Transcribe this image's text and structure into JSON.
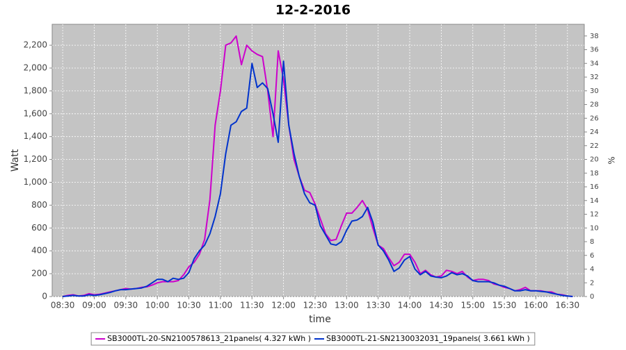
{
  "chart_data": {
    "type": "line",
    "title": "12-2-2016",
    "x_label": "time",
    "y_label": "Watt",
    "y2_label": "%",
    "x": [
      "08:30",
      "08:35",
      "08:40",
      "08:45",
      "08:50",
      "08:55",
      "09:00",
      "09:05",
      "09:10",
      "09:15",
      "09:20",
      "09:25",
      "09:30",
      "09:35",
      "09:40",
      "09:45",
      "09:50",
      "09:55",
      "10:00",
      "10:05",
      "10:10",
      "10:15",
      "10:20",
      "10:25",
      "10:30",
      "10:35",
      "10:40",
      "10:45",
      "10:50",
      "10:55",
      "11:00",
      "11:05",
      "11:10",
      "11:15",
      "11:20",
      "11:25",
      "11:30",
      "11:35",
      "11:40",
      "11:45",
      "11:50",
      "11:55",
      "12:00",
      "12:05",
      "12:10",
      "12:15",
      "12:20",
      "12:25",
      "12:30",
      "12:35",
      "12:40",
      "12:45",
      "12:50",
      "12:55",
      "13:00",
      "13:05",
      "13:10",
      "13:15",
      "13:20",
      "13:25",
      "13:30",
      "13:35",
      "13:40",
      "13:45",
      "13:50",
      "13:55",
      "14:00",
      "14:05",
      "14:10",
      "14:15",
      "14:20",
      "14:25",
      "14:30",
      "14:35",
      "14:40",
      "14:45",
      "14:50",
      "14:55",
      "15:00",
      "15:05",
      "15:10",
      "15:15",
      "15:20",
      "15:25",
      "15:30",
      "15:35",
      "15:40",
      "15:45",
      "15:50",
      "15:55",
      "16:00",
      "16:05",
      "16:10",
      "16:15",
      "16:20",
      "16:25",
      "16:30",
      "16:35"
    ],
    "series": [
      {
        "name": "SB3000TL-20-SN2100578613_21panels( 4.327 kWh )",
        "color": "#cc00cc",
        "values": [
          0,
          10,
          15,
          5,
          10,
          25,
          15,
          20,
          30,
          40,
          50,
          60,
          70,
          65,
          70,
          80,
          85,
          100,
          120,
          130,
          130,
          130,
          140,
          190,
          260,
          300,
          370,
          500,
          850,
          1500,
          1800,
          2200,
          2220,
          2280,
          2030,
          2200,
          2150,
          2120,
          2100,
          1800,
          1400,
          2150,
          1900,
          1500,
          1200,
          1050,
          930,
          910,
          810,
          680,
          550,
          490,
          500,
          620,
          730,
          730,
          780,
          840,
          760,
          600,
          450,
          420,
          340,
          270,
          300,
          370,
          370,
          300,
          200,
          230,
          190,
          170,
          180,
          230,
          220,
          200,
          220,
          170,
          140,
          150,
          150,
          140,
          110,
          100,
          80,
          70,
          50,
          60,
          80,
          50,
          50,
          50,
          40,
          40,
          20,
          15,
          5,
          0
        ]
      },
      {
        "name": "SB3000TL-21-SN2130032031_19panels( 3.661 kWh )",
        "color": "#0033cc",
        "values": [
          0,
          5,
          10,
          5,
          5,
          15,
          10,
          15,
          25,
          35,
          50,
          60,
          60,
          65,
          70,
          75,
          90,
          120,
          150,
          150,
          130,
          160,
          150,
          160,
          210,
          330,
          400,
          450,
          550,
          700,
          900,
          1250,
          1500,
          1530,
          1620,
          1650,
          2040,
          1830,
          1870,
          1820,
          1600,
          1350,
          2060,
          1500,
          1250,
          1050,
          900,
          820,
          800,
          620,
          540,
          460,
          450,
          480,
          580,
          660,
          670,
          700,
          780,
          650,
          450,
          400,
          320,
          220,
          250,
          320,
          350,
          240,
          190,
          220,
          180,
          170,
          165,
          180,
          210,
          190,
          200,
          180,
          140,
          130,
          130,
          130,
          120,
          100,
          90,
          70,
          50,
          50,
          60,
          50,
          50,
          45,
          40,
          30,
          20,
          10,
          5,
          0
        ]
      }
    ],
    "xlim": [
      "08:20",
      "16:46"
    ],
    "xticks": [
      "08:30",
      "09:00",
      "09:30",
      "10:00",
      "10:30",
      "11:00",
      "11:30",
      "12:00",
      "12:30",
      "13:00",
      "13:30",
      "14:00",
      "14:30",
      "15:00",
      "15:30",
      "16:00",
      "16:30"
    ],
    "ylim": [
      0,
      2383
    ],
    "yticks": [
      0,
      200,
      400,
      600,
      800,
      {
        "value": 1000,
        "label": "1,000"
      },
      {
        "value": 1200,
        "label": "1,200"
      },
      {
        "value": 1400,
        "label": "1,400"
      },
      {
        "value": 1600,
        "label": "1,600"
      },
      {
        "value": 1800,
        "label": "1,800"
      },
      {
        "value": 2000,
        "label": "2,000"
      },
      {
        "value": 2200,
        "label": "2,200"
      }
    ],
    "y2lim": [
      0,
      39.7
    ],
    "y2ticks": [
      0,
      2,
      4,
      6,
      8,
      10,
      12,
      14,
      16,
      18,
      20,
      22,
      24,
      26,
      28,
      30,
      32,
      34,
      36,
      38
    ],
    "grid": true
  }
}
